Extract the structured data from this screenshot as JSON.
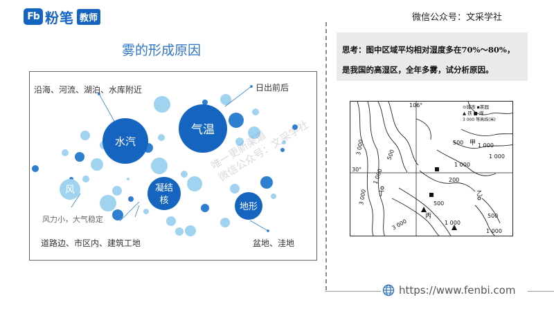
{
  "header": {
    "logo_mark": "Fb",
    "logo_text": "粉笔",
    "logo_badge": "教师",
    "wechat": "微信公众号：文采学社"
  },
  "section_title": "雾的形成原因",
  "diagram": {
    "circles": {
      "vapor": "水汽",
      "temperature": "气温",
      "nuclei_line1": "凝结",
      "nuclei_line2": "核",
      "wind": "风",
      "terrain": "地形"
    },
    "labels": {
      "vapor_sources": "沿海、河流、湖泊、水库附近",
      "sunrise": "日出前后",
      "wind_note": "风力小，大气稳定",
      "nuclei_sources": "道路边、市区内、建筑工地",
      "terrain_note": "盆地、洼地"
    }
  },
  "question": {
    "line1": "思考：图中区域平均相对湿度多在70%～80%，",
    "line2": "是我国的高湿区，全年多雾，试分析原因。"
  },
  "map": {
    "lon_label": "106°",
    "lat_label": "30°",
    "legend_line1": "⊙城市 ▪茶园",
    "legend_line2": "▲ 铁 ■ 煤",
    "legend_line3": "3 000 等高线(米)",
    "contours": [
      "3 000",
      "3 000",
      "500",
      "1 000",
      "500",
      "1 000",
      "1 000",
      "1 000",
      "200",
      "500",
      "500",
      "1 000",
      "1 000",
      "3 000"
    ],
    "places": {
      "jia": "甲",
      "yi": "乙",
      "bing": "丙",
      "ding": "丁"
    }
  },
  "watermark": {
    "line1": "唯一更新渠道",
    "line2": "微信公众号：文采学社"
  },
  "footer": {
    "url": "https://www.fenbi.com"
  }
}
